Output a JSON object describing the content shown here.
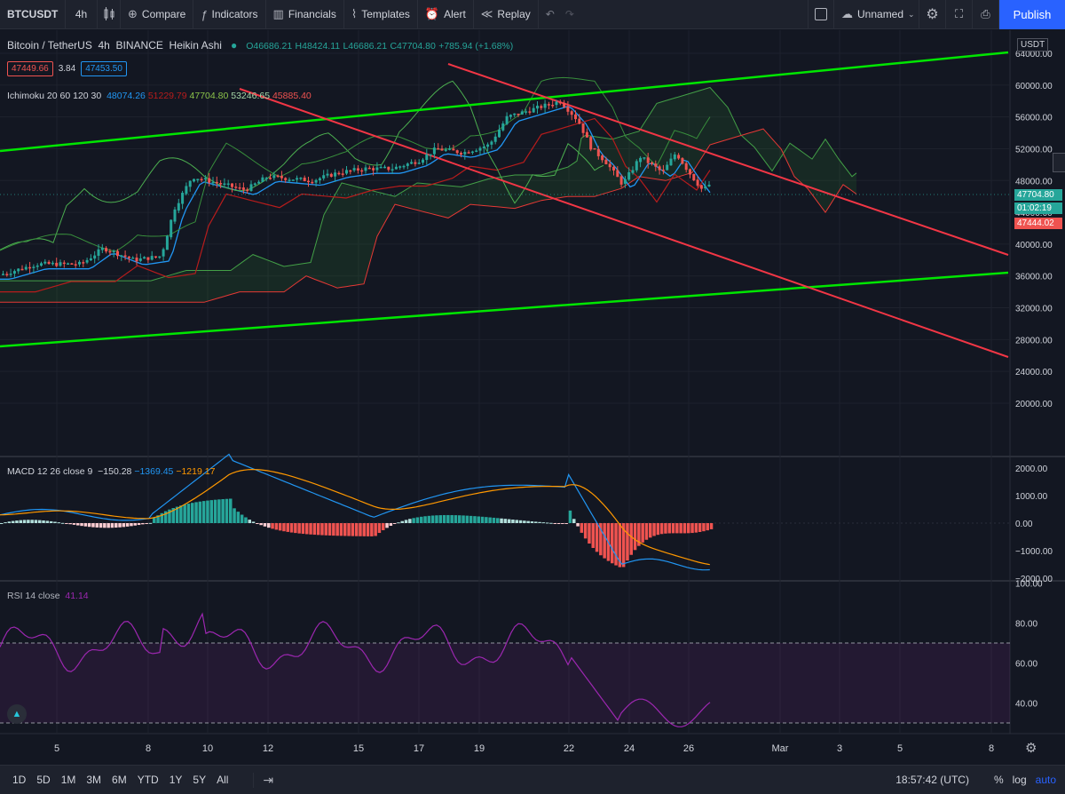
{
  "toolbar": {
    "symbol": "BTCUSDT",
    "interval": "4h",
    "compare": "Compare",
    "indicators": "Indicators",
    "financials": "Financials",
    "templates": "Templates",
    "alert": "Alert",
    "replay": "Replay",
    "layout_name": "Unnamed",
    "publish": "Publish"
  },
  "main_legend": {
    "title": "Bitcoin / TetherUS",
    "interval": "4h",
    "exchange": "BINANCE",
    "style": "Heikin Ashi",
    "open": "O46686.21",
    "high": "H48424.11",
    "low": "L46686.21",
    "close": "C47704.80",
    "change": "+785.94 (+1.68%)",
    "bid": "47449.66",
    "spread": "3.84",
    "ask": "47453.50"
  },
  "ichimoku_legend": {
    "name": "Ichimoku 20 60 120 30",
    "v1": "48074.26",
    "v2": "51229.79",
    "v3": "47704.80",
    "v4": "53246.65",
    "v5": "45885.40"
  },
  "macd_legend": {
    "name": "MACD 12 26 close 9",
    "hist": "−150.28",
    "macd": "−1369.45",
    "signal": "−1219.17"
  },
  "rsi_legend": {
    "name": "RSI 14 close",
    "value": "41.14"
  },
  "price_axis": {
    "currency": "USDT",
    "ticks": [
      "64000.00",
      "60000.00",
      "56000.00",
      "52000.00",
      "48000.00",
      "44000.00",
      "40000.00",
      "36000.00",
      "32000.00",
      "28000.00",
      "24000.00",
      "20000.00"
    ],
    "last_price": "47704.80",
    "countdown": "01:02:19",
    "red_label": "47444.02"
  },
  "macd_axis": {
    "ticks": [
      "2000.00",
      "1000.00",
      "0.00",
      "−1000.00",
      "−2000.00"
    ]
  },
  "rsi_axis": {
    "ticks": [
      "100.00",
      "80.00",
      "60.00",
      "40.00"
    ]
  },
  "time_axis": {
    "labels": [
      "5",
      "8",
      "10",
      "12",
      "15",
      "17",
      "19",
      "22",
      "24",
      "26",
      "Mar",
      "3",
      "5",
      "8"
    ]
  },
  "bottom_bar": {
    "ranges": [
      "1D",
      "5D",
      "1M",
      "3M",
      "6M",
      "YTD",
      "1Y",
      "5Y",
      "All"
    ],
    "clock": "18:57:42 (UTC)",
    "percent": "%",
    "log": "log",
    "auto": "auto"
  },
  "colors": {
    "up": "#26a69a",
    "down": "#ef5350",
    "trendline_green": "#00e600",
    "trendline_red": "#f23645",
    "rsi": "#9c27b0",
    "macd_line": "#2196f3",
    "signal_line": "#ff9800",
    "accent": "#2962ff"
  }
}
